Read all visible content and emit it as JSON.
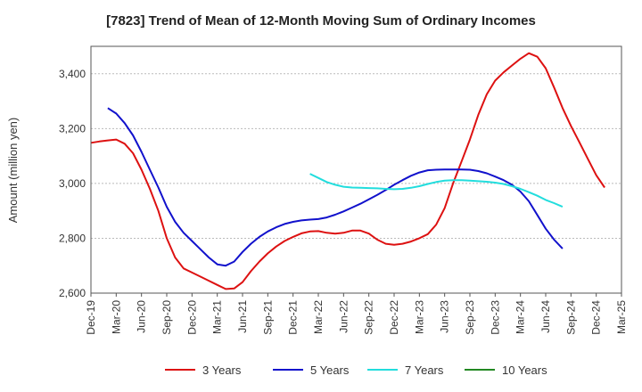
{
  "chart_data": {
    "type": "line",
    "title": "[7823]  Trend of Mean of 12-Month Moving Sum of Ordinary Incomes",
    "xlabel": "",
    "ylabel": "Amount (million yen)",
    "ylim": [
      2600,
      3500
    ],
    "yticks": [
      2600,
      2800,
      3000,
      3200,
      3400
    ],
    "ytick_labels": [
      "2,600",
      "2,800",
      "3,000",
      "3,200",
      "3,400"
    ],
    "x_start": "2019-12",
    "x_months": 63,
    "xtick_labels": [
      "Dec-19",
      "Mar-20",
      "Jun-20",
      "Sep-20",
      "Dec-20",
      "Mar-21",
      "Jun-21",
      "Sep-21",
      "Dec-21",
      "Mar-22",
      "Jun-22",
      "Sep-22",
      "Dec-22",
      "Mar-23",
      "Jun-23",
      "Sep-23",
      "Dec-23",
      "Mar-24",
      "Jun-24",
      "Sep-24",
      "Dec-24",
      "Mar-25"
    ],
    "series": [
      {
        "name": "3 Years",
        "color": "#dd1111",
        "start_index": 0,
        "values": [
          3148,
          3153,
          3157,
          3160,
          3145,
          3110,
          3050,
          2980,
          2900,
          2800,
          2730,
          2690,
          2675,
          2660,
          2645,
          2630,
          2615,
          2617,
          2640,
          2680,
          2715,
          2745,
          2770,
          2790,
          2805,
          2818,
          2825,
          2826,
          2820,
          2817,
          2820,
          2828,
          2828,
          2817,
          2795,
          2780,
          2776,
          2780,
          2788,
          2800,
          2815,
          2850,
          2910,
          3000,
          3080,
          3160,
          3250,
          3325,
          3375,
          3405,
          3430,
          3455,
          3475,
          3462,
          3420,
          3350,
          3275,
          3210,
          3150,
          3090,
          3030,
          2985
        ]
      },
      {
        "name": "5 Years",
        "color": "#1111cc",
        "start_index": 2,
        "values": [
          3275,
          3255,
          3220,
          3175,
          3115,
          3050,
          2985,
          2915,
          2860,
          2820,
          2790,
          2760,
          2730,
          2705,
          2700,
          2715,
          2750,
          2780,
          2805,
          2825,
          2840,
          2852,
          2860,
          2865,
          2868,
          2870,
          2876,
          2886,
          2898,
          2912,
          2926,
          2942,
          2958,
          2976,
          2995,
          3012,
          3028,
          3040,
          3048,
          3050,
          3051,
          3051,
          3051,
          3050,
          3045,
          3037,
          3025,
          3012,
          2995,
          2970,
          2935,
          2885,
          2835,
          2795,
          2762
        ]
      },
      {
        "name": "7 Years",
        "color": "#22dddd",
        "start_index": 26,
        "values": [
          3035,
          3020,
          3005,
          2995,
          2988,
          2985,
          2984,
          2983,
          2982,
          2980,
          2979,
          2980,
          2984,
          2990,
          2998,
          3005,
          3010,
          3012,
          3012,
          3010,
          3008,
          3006,
          3003,
          2998,
          2990,
          2980,
          2968,
          2955,
          2940,
          2928,
          2915
        ]
      },
      {
        "name": "10 Years",
        "color": "#228822",
        "start_index": 0,
        "values": []
      }
    ],
    "legend": {
      "position": "bottom"
    }
  }
}
